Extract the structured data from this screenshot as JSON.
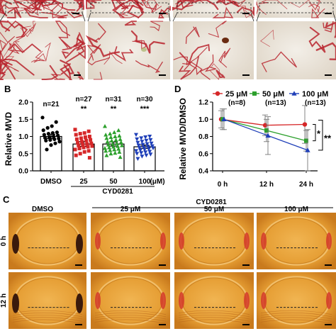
{
  "colors": {
    "membrane_bg": "#eae3d8",
    "vessel": "#b8232d",
    "egg_bg": "#e9a43a",
    "egg_dark": "#c97a1d",
    "dmso_bar": "#000000",
    "dose25": "#d62728",
    "dose50": "#2ca02c",
    "dose100": "#1f3fb8"
  },
  "panel_labels": {
    "b": "B",
    "c": "C",
    "d": "D"
  },
  "chart_data": [
    {
      "type": "bar",
      "panel": "B",
      "ylabel": "Relative MVD",
      "ylim": [
        0.0,
        2.0
      ],
      "yticks": [
        "0.0",
        "0.5",
        "1.0",
        "1.5",
        "2.0"
      ],
      "categories": [
        "DMSO",
        "25",
        "50",
        "100"
      ],
      "unit_label": "(μM)",
      "group_label": "CYD0281",
      "values": [
        1.0,
        0.78,
        0.78,
        0.7
      ],
      "errors": [
        0.06,
        0.07,
        0.06,
        0.05
      ],
      "n_labels": [
        "n=21",
        "n=27",
        "n=31",
        "n=30"
      ],
      "significance": [
        "",
        "**",
        "**",
        "***"
      ],
      "points": [
        [
          1.55,
          1.42,
          1.3,
          1.25,
          1.18,
          1.12,
          1.1,
          1.08,
          1.05,
          1.03,
          1.0,
          0.98,
          0.96,
          0.94,
          0.92,
          0.9,
          0.88,
          0.85,
          0.8,
          0.75,
          0.62
        ],
        [
          1.2,
          1.15,
          1.1,
          1.08,
          1.05,
          1.0,
          0.98,
          0.95,
          0.92,
          0.9,
          0.88,
          0.85,
          0.82,
          0.8,
          0.78,
          0.76,
          0.74,
          0.72,
          0.7,
          0.68,
          0.65,
          0.62,
          0.58,
          0.55,
          0.5,
          0.45,
          0.38
        ],
        [
          1.3,
          1.18,
          1.12,
          1.08,
          1.05,
          1.02,
          1.0,
          0.98,
          0.95,
          0.92,
          0.9,
          0.88,
          0.85,
          0.83,
          0.8,
          0.78,
          0.76,
          0.74,
          0.72,
          0.7,
          0.68,
          0.66,
          0.64,
          0.62,
          0.6,
          0.58,
          0.55,
          0.52,
          0.5,
          0.45,
          0.4
        ],
        [
          1.05,
          1.0,
          0.98,
          0.95,
          0.92,
          0.9,
          0.88,
          0.85,
          0.82,
          0.8,
          0.78,
          0.76,
          0.74,
          0.72,
          0.7,
          0.68,
          0.67,
          0.66,
          0.64,
          0.62,
          0.6,
          0.58,
          0.56,
          0.54,
          0.52,
          0.5,
          0.48,
          0.45,
          0.42,
          0.35
        ]
      ]
    },
    {
      "type": "line",
      "panel": "D",
      "ylabel": "Relative MVD/DMSO",
      "ylim": [
        0.4,
        1.2
      ],
      "yticks": [
        "0.4",
        "0.6",
        "0.8",
        "1.0",
        "1.2"
      ],
      "x": [
        "0 h",
        "12 h",
        "24 h"
      ],
      "series": [
        {
          "name": "25 μM",
          "n": "(n=8)",
          "values": [
            1.0,
            0.93,
            0.94
          ],
          "errors": [
            0.1,
            0.12,
            0.22
          ]
        },
        {
          "name": "50 μM",
          "n": "(n=13)",
          "values": [
            1.0,
            0.87,
            0.75
          ],
          "errors": [
            0.12,
            0.13,
            0.12
          ]
        },
        {
          "name": "100 μM",
          "n": "(n=13)",
          "values": [
            1.0,
            0.81,
            0.64
          ],
          "errors": [
            0.12,
            0.22,
            0.24
          ]
        }
      ],
      "significance": [
        "*",
        "**"
      ]
    }
  ],
  "panel_c": {
    "group_label": "CYD0281",
    "columns": [
      "DMSO",
      "25 μM",
      "50 μM",
      "100 μM"
    ],
    "rows": [
      "0 h",
      "12 h"
    ]
  }
}
